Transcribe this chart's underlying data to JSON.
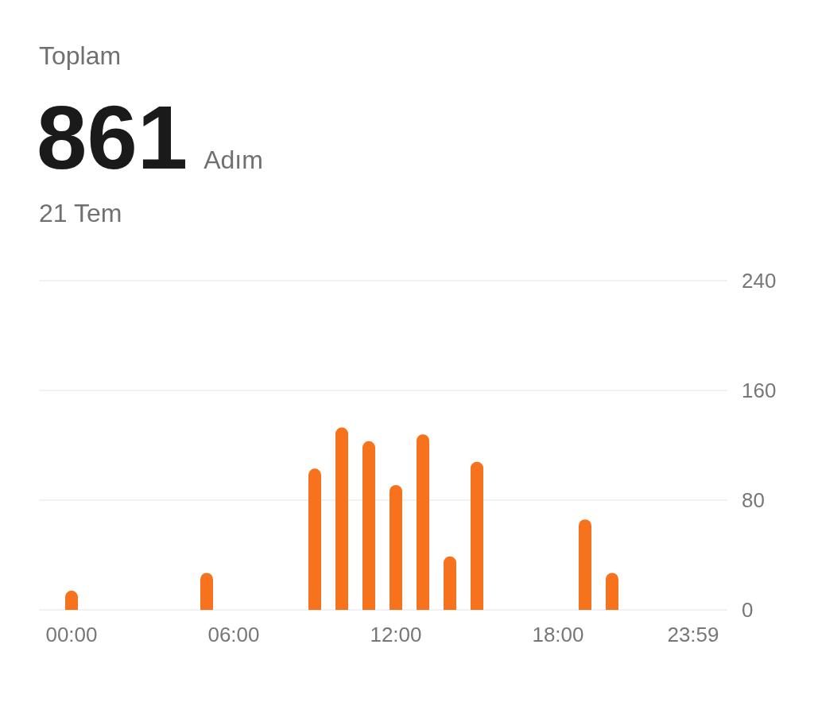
{
  "chart_data": {
    "type": "bar",
    "title": "Toplam",
    "subtitle": "21 Tem",
    "annotations": [
      "861",
      "Adım"
    ],
    "categories": [
      "00:00",
      null,
      null,
      null,
      null,
      null,
      "06:00",
      null,
      null,
      null,
      null,
      null,
      "12:00",
      null,
      null,
      null,
      null,
      null,
      "18:00",
      null,
      null,
      null,
      null,
      "23:59"
    ],
    "values": [
      14,
      0,
      0,
      0,
      0,
      27,
      0,
      0,
      0,
      103,
      133,
      123,
      91,
      128,
      39,
      108,
      0,
      0,
      0,
      66,
      27,
      0,
      0,
      0
    ],
    "color": "#f6721d",
    "ylim": [
      0,
      240
    ],
    "yticks": [
      0,
      80,
      160,
      240
    ],
    "grid": "y"
  }
}
